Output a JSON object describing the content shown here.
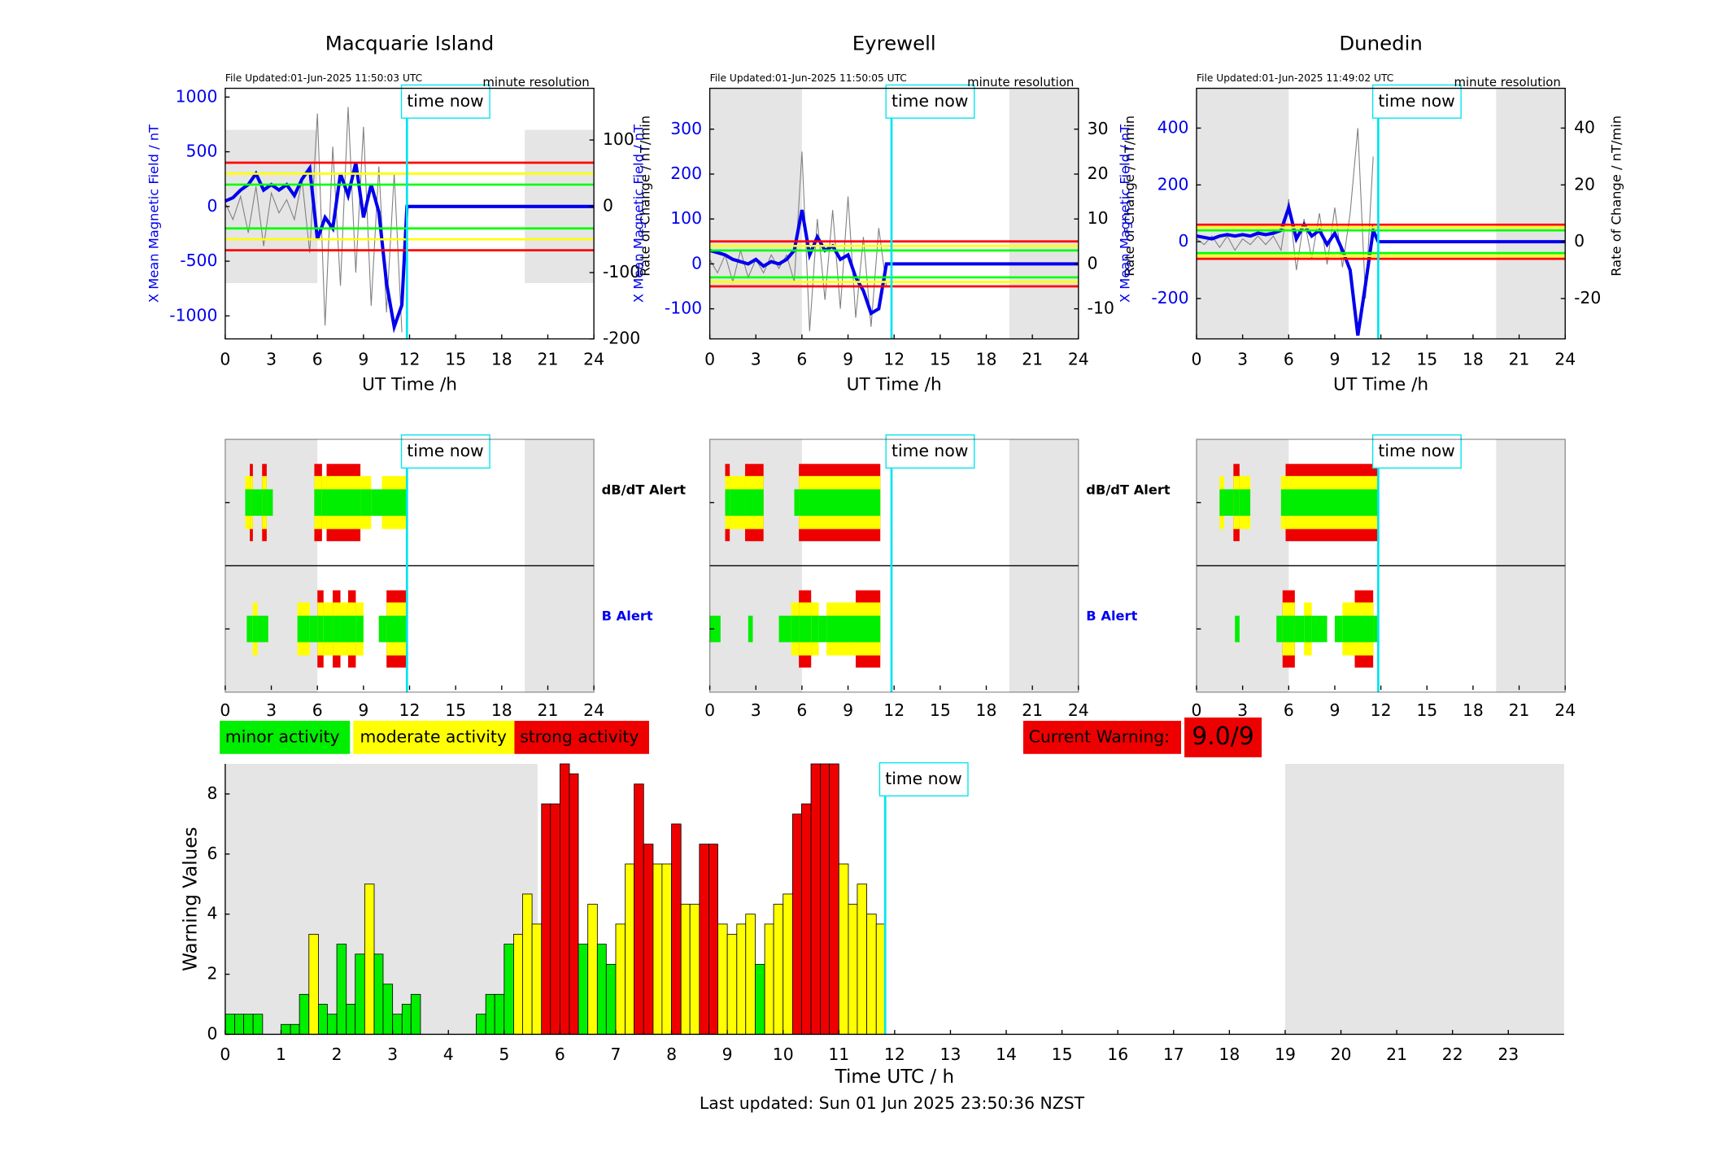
{
  "chart_data": [
    {
      "type": "line",
      "title": "Macquarie Island",
      "file_updated": "File Updated:01-Jun-2025 11:50:03 UTC",
      "resolution": "minute resolution",
      "time_now_label": "time now",
      "time_now": 11.83,
      "xlabel": "UT Time /h",
      "ylabel": "X Mean Magnetic Field / nT",
      "y2label": "Rate of Change / nT/min",
      "xlim": [
        0,
        24
      ],
      "xticks": [
        0,
        3,
        6,
        9,
        12,
        15,
        18,
        21,
        24
      ],
      "ylim": [
        -1210,
        1080
      ],
      "yticks": [
        -1000,
        -500,
        0,
        500,
        1000
      ],
      "y2lim": [
        -200,
        178
      ],
      "y2ticks": [
        -200,
        -100,
        0,
        100
      ],
      "shaded": [
        [
          0,
          6
        ],
        [
          19.5,
          24
        ]
      ],
      "shaded_ylim": [
        -700,
        700
      ],
      "thresholds": [
        {
          "color": "#ff0000",
          "values": [
            400,
            -400
          ]
        },
        {
          "color": "#ffff00",
          "values": [
            300,
            -300
          ]
        },
        {
          "color": "#00ff00",
          "values": [
            200,
            -200
          ]
        }
      ],
      "series": [
        {
          "color": "#0000ee",
          "x": [
            0,
            0.5,
            1,
            1.5,
            2,
            2.5,
            3,
            3.5,
            4,
            4.5,
            5,
            5.5,
            6,
            6.5,
            7,
            7.5,
            8,
            8.5,
            9,
            9.5,
            10,
            10.5,
            11,
            11.5,
            11.83,
            24
          ],
          "values": [
            50,
            80,
            150,
            200,
            300,
            150,
            200,
            150,
            200,
            100,
            250,
            350,
            -300,
            -100,
            -200,
            300,
            100,
            400,
            -100,
            200,
            -50,
            -700,
            -1100,
            -900,
            0,
            0
          ]
        },
        {
          "color": "#808080",
          "axis": "y2",
          "x": [
            0,
            0.5,
            1,
            1.5,
            2,
            2.5,
            3,
            3.5,
            4,
            4.5,
            5,
            5.5,
            6,
            6.5,
            7,
            7.5,
            8,
            8.5,
            9,
            9.5,
            10,
            10.5,
            11,
            11.5
          ],
          "values": [
            5,
            -20,
            15,
            -40,
            30,
            -60,
            20,
            -10,
            10,
            -20,
            40,
            -70,
            140,
            -180,
            90,
            -120,
            150,
            -100,
            120,
            -150,
            60,
            -160,
            50,
            -190
          ]
        }
      ]
    },
    {
      "type": "line",
      "title": "Eyrewell",
      "file_updated": "File Updated:01-Jun-2025 11:50:05 UTC",
      "resolution": "minute resolution",
      "time_now_label": "time now",
      "time_now": 11.83,
      "xlabel": "UT Time /h",
      "ylabel": "X Mean Magnetic Field / nT",
      "y2label": "Rate of Change / nT/min",
      "xlim": [
        0,
        24
      ],
      "xticks": [
        0,
        3,
        6,
        9,
        12,
        15,
        18,
        21,
        24
      ],
      "ylim": [
        -167,
        391
      ],
      "yticks": [
        -100,
        0,
        100,
        200,
        300
      ],
      "y2lim": [
        -16.7,
        39.1
      ],
      "y2ticks": [
        -10,
        0,
        10,
        20,
        30
      ],
      "shaded": [
        [
          0,
          6
        ],
        [
          19.5,
          24
        ]
      ],
      "thresholds": [
        {
          "color": "#ff0000",
          "values": [
            50,
            -50
          ]
        },
        {
          "color": "#ffff00",
          "values": [
            40,
            -40
          ]
        },
        {
          "color": "#00ff00",
          "values": [
            30,
            -30
          ]
        }
      ],
      "series": [
        {
          "color": "#0000ee",
          "x": [
            0,
            0.5,
            1,
            1.5,
            2,
            2.5,
            3,
            3.5,
            4,
            4.5,
            5,
            5.5,
            6,
            6.5,
            7,
            7.5,
            8,
            8.5,
            9,
            9.5,
            10,
            10.5,
            11,
            11.5,
            11.83,
            24
          ],
          "values": [
            30,
            25,
            20,
            10,
            5,
            0,
            10,
            -5,
            5,
            0,
            10,
            30,
            120,
            20,
            60,
            30,
            40,
            10,
            20,
            -30,
            -60,
            -110,
            -100,
            0,
            0,
            0
          ]
        },
        {
          "color": "#808080",
          "axis": "y2",
          "x": [
            0,
            0.5,
            1,
            1.5,
            2,
            2.5,
            3,
            3.5,
            4,
            4.5,
            5,
            5.5,
            6,
            6.5,
            7,
            7.5,
            8,
            8.5,
            9,
            9.5,
            10,
            10.5,
            11,
            11.5
          ],
          "values": [
            1,
            -2,
            2,
            -4,
            3,
            -3,
            1,
            -2,
            2,
            -1,
            2,
            -4,
            25,
            -15,
            10,
            -8,
            12,
            -10,
            15,
            -12,
            6,
            -14,
            8,
            -5
          ]
        }
      ]
    },
    {
      "type": "line",
      "title": "Dunedin",
      "file_updated": "File Updated:01-Jun-2025 11:49:02 UTC",
      "resolution": "minute resolution",
      "time_now_label": "time now",
      "time_now": 11.83,
      "xlabel": "UT Time /h",
      "ylabel": "X Mean Magnetic Field / nT",
      "y2label": "Rate of Change / nT/min",
      "xlim": [
        0,
        24
      ],
      "xticks": [
        0,
        3,
        6,
        9,
        12,
        15,
        18,
        21,
        24
      ],
      "ylim": [
        -342,
        540
      ],
      "yticks": [
        -200,
        0,
        200,
        400
      ],
      "y2lim": [
        -34.2,
        54
      ],
      "y2ticks": [
        -20,
        0,
        20,
        40
      ],
      "shaded": [
        [
          0,
          6
        ],
        [
          19.5,
          24
        ]
      ],
      "thresholds": [
        {
          "color": "#ff0000",
          "values": [
            60,
            -60
          ]
        },
        {
          "color": "#ffff00",
          "values": [
            50,
            -50
          ]
        },
        {
          "color": "#00ff00",
          "values": [
            40,
            -40
          ]
        }
      ],
      "series": [
        {
          "color": "#0000ee",
          "x": [
            0,
            0.5,
            1,
            1.5,
            2,
            2.5,
            3,
            3.5,
            4,
            4.5,
            5,
            5.5,
            6,
            6.5,
            7,
            7.5,
            8,
            8.5,
            9,
            9.5,
            10,
            10.5,
            11,
            11.5,
            11.83,
            24
          ],
          "values": [
            20,
            15,
            10,
            20,
            25,
            20,
            25,
            20,
            30,
            25,
            30,
            40,
            120,
            10,
            60,
            20,
            40,
            -10,
            30,
            -30,
            -100,
            -330,
            -150,
            40,
            0,
            0
          ]
        },
        {
          "color": "#808080",
          "axis": "y2",
          "x": [
            0,
            0.5,
            1,
            1.5,
            2,
            2.5,
            3,
            3.5,
            4,
            4.5,
            5,
            5.5,
            6,
            6.5,
            7,
            7.5,
            8,
            8.5,
            9,
            9.5,
            10,
            10.5,
            11,
            11.5
          ],
          "values": [
            1,
            -1,
            2,
            -2,
            2,
            -3,
            1,
            -1,
            2,
            -1,
            2,
            -3,
            15,
            -10,
            8,
            -6,
            10,
            -8,
            12,
            -9,
            10,
            40,
            -20,
            30
          ]
        }
      ]
    },
    {
      "type": "alert",
      "time_now_label": "time now",
      "time_now": 11.83,
      "xlim": [
        0,
        24
      ],
      "xticks": [
        0,
        3,
        6,
        9,
        12,
        15,
        18,
        21,
        24
      ],
      "shaded": [
        [
          0,
          6
        ],
        [
          19.5,
          24
        ]
      ],
      "rows": [
        {
          "name": "dB/dT Alert",
          "label_color": "#000000",
          "start": [
            1.3,
            1.6,
            1.8,
            2.4,
            2.7,
            5.8,
            6.3,
            6.6,
            8.8,
            9.5,
            10.2
          ],
          "end": [
            1.6,
            1.8,
            2.4,
            2.7,
            3.1,
            6.3,
            6.6,
            8.8,
            9.5,
            10.2,
            11.8
          ],
          "values": [
            2,
            3,
            1,
            3,
            1,
            3,
            2,
            3,
            2,
            1,
            2
          ]
        },
        {
          "name": "B Alert",
          "label_color": "#0000ee",
          "start": [
            1.4,
            1.8,
            2.1,
            4.7,
            5.5,
            6.0,
            6.4,
            7.0,
            7.5,
            8.0,
            8.5,
            10.0,
            10.5
          ],
          "end": [
            1.8,
            2.1,
            2.8,
            5.5,
            6.0,
            6.4,
            7.0,
            7.5,
            8.0,
            8.5,
            9.0,
            10.5,
            11.8
          ],
          "values": [
            1,
            2,
            1,
            2,
            1,
            3,
            2,
            3,
            2,
            3,
            2,
            1,
            3
          ]
        }
      ]
    },
    {
      "type": "alert",
      "time_now_label": "time now",
      "time_now": 11.83,
      "xlim": [
        0,
        24
      ],
      "xticks": [
        0,
        3,
        6,
        9,
        12,
        15,
        18,
        21,
        24
      ],
      "shaded": [
        [
          0,
          6
        ],
        [
          19.5,
          24
        ]
      ],
      "rows": [
        {
          "name": "dB/dT Alert",
          "label_color": "#000000",
          "start": [
            1.0,
            1.3,
            2.3,
            5.5,
            5.8
          ],
          "end": [
            1.3,
            2.3,
            3.5,
            5.8,
            11.1
          ],
          "values": [
            3,
            2,
            3,
            1,
            3
          ]
        },
        {
          "name": "B Alert",
          "label_color": "#0000ee",
          "start": [
            0,
            2.5,
            4.5,
            5.3,
            5.8,
            6.6,
            7.1,
            7.6,
            9.5
          ],
          "end": [
            0.7,
            2.8,
            5.3,
            5.8,
            6.6,
            7.1,
            7.6,
            9.5,
            11.1
          ],
          "values": [
            1,
            1,
            1,
            2,
            3,
            2,
            1,
            2,
            3
          ]
        }
      ]
    },
    {
      "type": "alert",
      "time_now_label": "time now",
      "time_now": 11.83,
      "xlim": [
        0,
        24
      ],
      "xticks": [
        0,
        3,
        6,
        9,
        12,
        15,
        18,
        21,
        24
      ],
      "shaded": [
        [
          0,
          6
        ],
        [
          19.5,
          24
        ]
      ],
      "rows": [
        {
          "start": [
            1.5,
            1.8,
            2.4,
            2.8,
            5.5,
            5.8
          ],
          "end": [
            1.8,
            2.4,
            2.8,
            3.5,
            5.8,
            11.8
          ],
          "values": [
            2,
            1,
            3,
            2,
            2,
            3
          ]
        },
        {
          "start": [
            2.5,
            5.2,
            5.6,
            6.4,
            7.0,
            7.5,
            9.0,
            9.5,
            10.3,
            11.5
          ],
          "end": [
            2.8,
            5.6,
            6.4,
            7.0,
            7.5,
            8.5,
            9.5,
            10.3,
            11.5,
            11.8
          ],
          "values": [
            1,
            1,
            3,
            1,
            2,
            1,
            1,
            2,
            3,
            1
          ]
        }
      ]
    },
    {
      "type": "bar",
      "xlabel": "Time UTC / h",
      "ylabel": "Warning Values",
      "time_now_label": "time now",
      "time_now": 11.83,
      "xlim": [
        0,
        24
      ],
      "xticks": [
        0,
        1,
        2,
        3,
        4,
        5,
        6,
        7,
        8,
        9,
        10,
        11,
        12,
        13,
        14,
        15,
        16,
        17,
        18,
        19,
        20,
        21,
        22,
        23
      ],
      "ylim": [
        0,
        9
      ],
      "yticks": [
        0,
        2,
        4,
        6,
        8
      ],
      "shaded": [
        [
          0,
          5.6
        ],
        [
          19,
          24
        ]
      ],
      "x": [
        0,
        0.17,
        0.33,
        0.5,
        0.67,
        0.83,
        1,
        1.17,
        1.33,
        1.5,
        1.67,
        1.83,
        2,
        2.17,
        2.33,
        2.5,
        2.67,
        2.83,
        3,
        3.17,
        3.33,
        3.5,
        3.67,
        3.83,
        4,
        4.17,
        4.33,
        4.5,
        4.67,
        4.83,
        5,
        5.17,
        5.33,
        5.5,
        5.67,
        5.83,
        6,
        6.17,
        6.33,
        6.5,
        6.67,
        6.83,
        7,
        7.17,
        7.33,
        7.5,
        7.67,
        7.83,
        8,
        8.17,
        8.33,
        8.5,
        8.67,
        8.83,
        9,
        9.17,
        9.33,
        9.5,
        9.67,
        9.83,
        10,
        10.17,
        10.33,
        10.5,
        10.67,
        10.83,
        11,
        11.17,
        11.33,
        11.5,
        11.67
      ],
      "values": [
        0.67,
        0.67,
        0.67,
        0.67,
        0,
        0,
        0.33,
        0.33,
        1.33,
        3.33,
        1,
        0.67,
        3,
        1,
        2.67,
        5,
        2.67,
        1.67,
        0.67,
        1,
        1.33,
        0,
        0,
        0,
        0,
        0,
        0,
        0.67,
        1.33,
        1.33,
        3,
        3.33,
        4.67,
        3.67,
        7.67,
        7.67,
        9,
        8.67,
        3,
        4.33,
        3,
        2.33,
        3.67,
        5.67,
        8.33,
        6.33,
        5.67,
        5.67,
        7,
        4.33,
        4.33,
        6.33,
        6.33,
        3.67,
        3.33,
        3.67,
        4,
        2.33,
        3.67,
        4.33,
        4.67,
        7.33,
        7.67,
        9,
        9,
        9,
        5.67,
        4.33,
        5,
        4,
        3.67
      ],
      "colors": [
        "#00ee00",
        "#00ee00",
        "#00ee00",
        "#00ee00",
        "#00ee00",
        "#00ee00",
        "#00ee00",
        "#00ee00",
        "#00ee00",
        "#ffff00",
        "#00ee00",
        "#00ee00",
        "#00ee00",
        "#00ee00",
        "#00ee00",
        "#ffff00",
        "#00ee00",
        "#00ee00",
        "#00ee00",
        "#00ee00",
        "#00ee00",
        "#00ee00",
        "#00ee00",
        "#00ee00",
        "#00ee00",
        "#00ee00",
        "#00ee00",
        "#00ee00",
        "#00ee00",
        "#00ee00",
        "#00ee00",
        "#ffff00",
        "#ffff00",
        "#ffff00",
        "#ee0000",
        "#ee0000",
        "#ee0000",
        "#ee0000",
        "#00ee00",
        "#ffff00",
        "#00ee00",
        "#00ee00",
        "#ffff00",
        "#ffff00",
        "#ee0000",
        "#ee0000",
        "#ffff00",
        "#ffff00",
        "#ee0000",
        "#ffff00",
        "#ffff00",
        "#ee0000",
        "#ee0000",
        "#ffff00",
        "#ffff00",
        "#ffff00",
        "#ffff00",
        "#00ee00",
        "#ffff00",
        "#ffff00",
        "#ffff00",
        "#ee0000",
        "#ee0000",
        "#ee0000",
        "#ee0000",
        "#ee0000",
        "#ffff00",
        "#ffff00",
        "#ffff00",
        "#ffff00",
        "#ffff00"
      ]
    }
  ],
  "legend": [
    {
      "label": "minor activity",
      "color": "#00ee00"
    },
    {
      "label": "moderate activity",
      "color": "#ffff00"
    },
    {
      "label": "strong activity",
      "color": "#ee0000"
    }
  ],
  "current_warning": {
    "label": "Current Warning:",
    "value": "9.0/9"
  },
  "footer": "Last updated: Sun 01 Jun 2025 23:50:36 NZST"
}
